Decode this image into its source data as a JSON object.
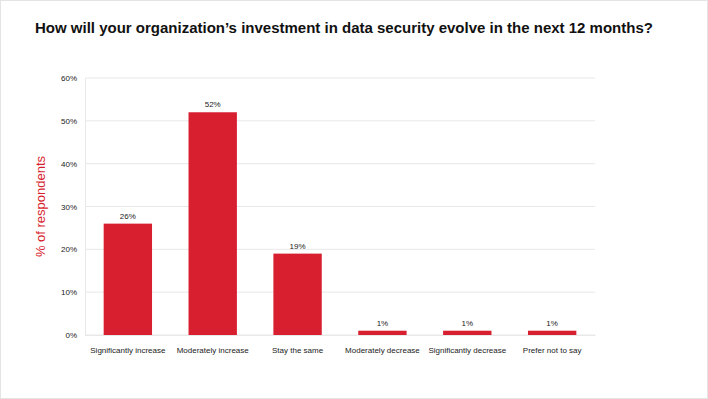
{
  "chart_data": {
    "type": "bar",
    "title": "How will your organization’s investment in data security evolve in the next 12 months?",
    "y_label": "% of respondents",
    "categories": [
      "Significantly increase",
      "Moderately increase",
      "Stay the same",
      "Moderately decrease",
      "Significantly decrease",
      "Prefer not to say"
    ],
    "values": [
      26,
      52,
      19,
      1,
      1,
      1
    ],
    "value_labels": [
      "26%",
      "52%",
      "19%",
      "1%",
      "1%",
      "1%"
    ],
    "color": "#d71f30",
    "ylim": [
      0,
      60
    ],
    "yticks": [
      {
        "value": 0,
        "label": "0%"
      },
      {
        "value": 10,
        "label": "10%"
      },
      {
        "value": 20,
        "label": "20%"
      },
      {
        "value": 30,
        "label": "30%"
      },
      {
        "value": 40,
        "label": "40%"
      },
      {
        "value": 50,
        "label": "50%"
      },
      {
        "value": 60,
        "label": "60%"
      }
    ],
    "grid": true,
    "data_labels": true
  }
}
